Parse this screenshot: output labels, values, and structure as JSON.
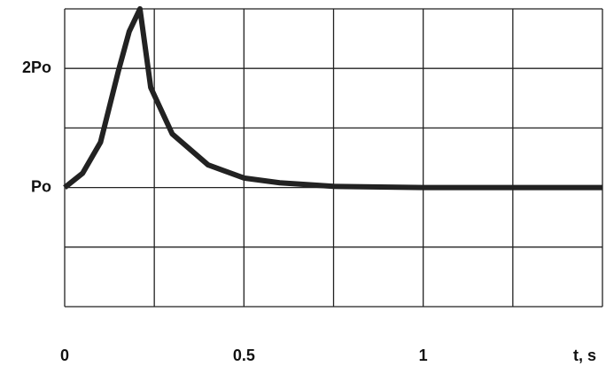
{
  "chart_data": {
    "type": "line",
    "x": [
      0,
      0.05,
      0.1,
      0.15,
      0.18,
      0.21,
      0.24,
      0.3,
      0.4,
      0.5,
      0.6,
      0.75,
      1.0,
      1.5
    ],
    "series": [
      {
        "color": "#222222",
        "values": [
          1,
          1.12,
          1.38,
          1.98,
          2.31,
          2.5,
          1.84,
          1.45,
          1.19,
          1.08,
          1.04,
          1.01,
          1,
          1
        ]
      }
    ],
    "xlabel": "t, s",
    "xlim": [
      0,
      1.5
    ],
    "xticks": [
      0,
      0.5,
      1
    ],
    "xminorticks": [
      0.25,
      0.75,
      1.25,
      1.5
    ],
    "ylim": [
      0,
      2.5
    ],
    "yticks": [
      {
        "value": 1,
        "label": "Po"
      },
      {
        "value": 2,
        "label": "2Po"
      }
    ],
    "yminorticks": [
      0,
      0.5,
      1.5,
      2.5
    ],
    "grid": true
  }
}
